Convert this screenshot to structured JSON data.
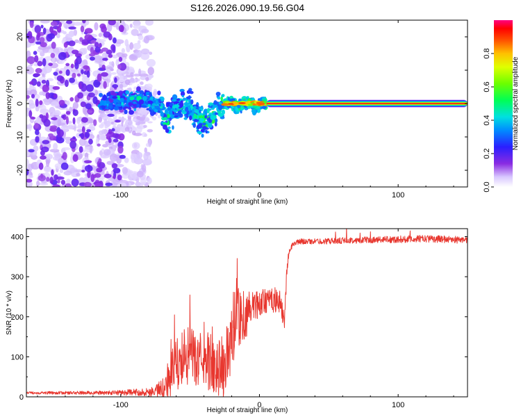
{
  "title": "S126.2026.090.19.56.G04",
  "chart_data": [
    {
      "type": "heatmap",
      "title": "S126.2026.090.19.56.G04",
      "xlabel": "Height of straight line (km)",
      "ylabel": "Frequency (Hz)",
      "xlim": [
        -168,
        150
      ],
      "ylim": [
        -25,
        25
      ],
      "xticks": [
        -100,
        0,
        100
      ],
      "xtick_labels": [
        "-100",
        "0",
        "100"
      ],
      "yticks": [
        -20,
        -10,
        0,
        10,
        20
      ],
      "ytick_labels": [
        "-20",
        "-10",
        "0",
        "10",
        "20"
      ],
      "colorbar": {
        "label": "Normalized spectral amplitude",
        "range": [
          0,
          1
        ],
        "ticks": [
          0.0,
          0.2,
          0.4,
          0.6,
          0.8
        ],
        "tick_labels": [
          "0.0",
          "0.2",
          "0.4",
          "0.6",
          "0.8"
        ]
      },
      "features": {
        "noise_region_km": [
          -168,
          -80
        ],
        "noise_amplitude": 0.1,
        "tracking_onset_km": -115,
        "stable_line_start_km": 5,
        "stable_line_frequency_hz": 0,
        "stable_line_amplitude": 1.0
      }
    },
    {
      "type": "line",
      "xlabel": "Height of straight line (km)",
      "ylabel": "SNR (10 * v/v)",
      "xlim": [
        -168,
        150
      ],
      "ylim": [
        0,
        420
      ],
      "xticks": [
        -100,
        0,
        100
      ],
      "xtick_labels": [
        "-100",
        "0",
        "100"
      ],
      "yticks": [
        0,
        100,
        200,
        300,
        400
      ],
      "ytick_labels": [
        "0",
        "100",
        "200",
        "300",
        "400"
      ],
      "series": [
        {
          "name": "SNR",
          "color": "#e8372f",
          "envelope_x": [
            -168,
            -110,
            -80,
            -70,
            -66,
            -60,
            -55,
            -50,
            -45,
            -40,
            -35,
            -30,
            -26,
            -22,
            -18,
            -15,
            -12,
            -8,
            -4,
            0,
            5,
            10,
            15,
            18,
            20,
            22,
            25,
            30,
            40,
            60,
            80,
            100,
            120,
            150
          ],
          "envelope_y": [
            10,
            10,
            12,
            20,
            40,
            75,
            95,
            105,
            90,
            95,
            85,
            80,
            70,
            115,
            180,
            195,
            200,
            205,
            225,
            235,
            240,
            240,
            235,
            190,
            330,
            370,
            385,
            388,
            388,
            390,
            392,
            393,
            395,
            392
          ],
          "noise_amplitude": [
            3,
            5,
            10,
            25,
            55,
            70,
            75,
            70,
            65,
            70,
            75,
            80,
            85,
            90,
            95,
            90,
            85,
            60,
            40,
            35,
            30,
            30,
            30,
            25,
            15,
            8,
            7,
            7,
            7,
            8,
            8,
            9,
            9,
            9
          ]
        }
      ]
    }
  ]
}
